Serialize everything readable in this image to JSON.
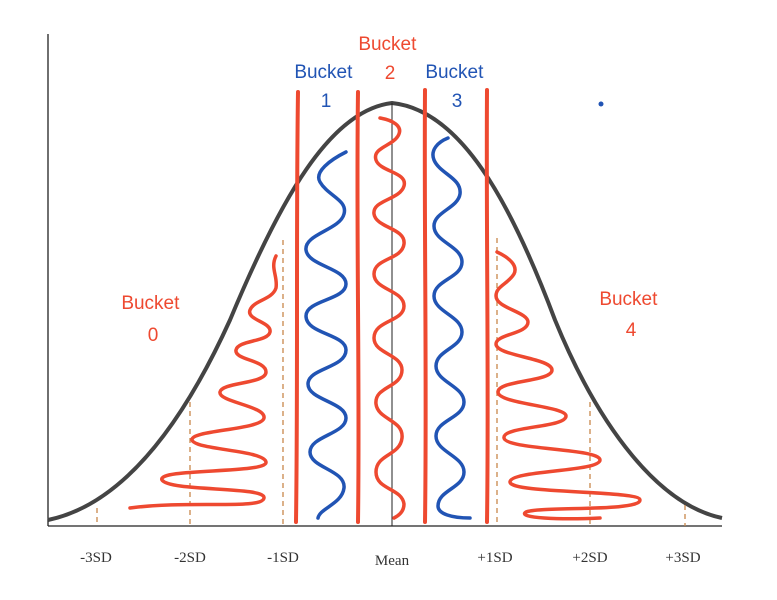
{
  "colors": {
    "red": "#ee4930",
    "blue": "#2154b4",
    "curve": "#444444",
    "axis": "#222222",
    "guide": "#c8874a"
  },
  "buckets": [
    {
      "line1": "Bucket",
      "line2": "0",
      "color": "red"
    },
    {
      "line1": "Bucket",
      "line2": "1",
      "color": "blue"
    },
    {
      "line1": "Bucket",
      "line2": "2",
      "color": "red"
    },
    {
      "line1": "Bucket",
      "line2": "3",
      "color": "blue"
    },
    {
      "line1": "Bucket",
      "line2": "4",
      "color": "red"
    }
  ],
  "axis_ticks": [
    "-3SD",
    "-2SD",
    "-1SD",
    "Mean",
    "+1SD",
    "+2SD",
    "+3SD"
  ]
}
